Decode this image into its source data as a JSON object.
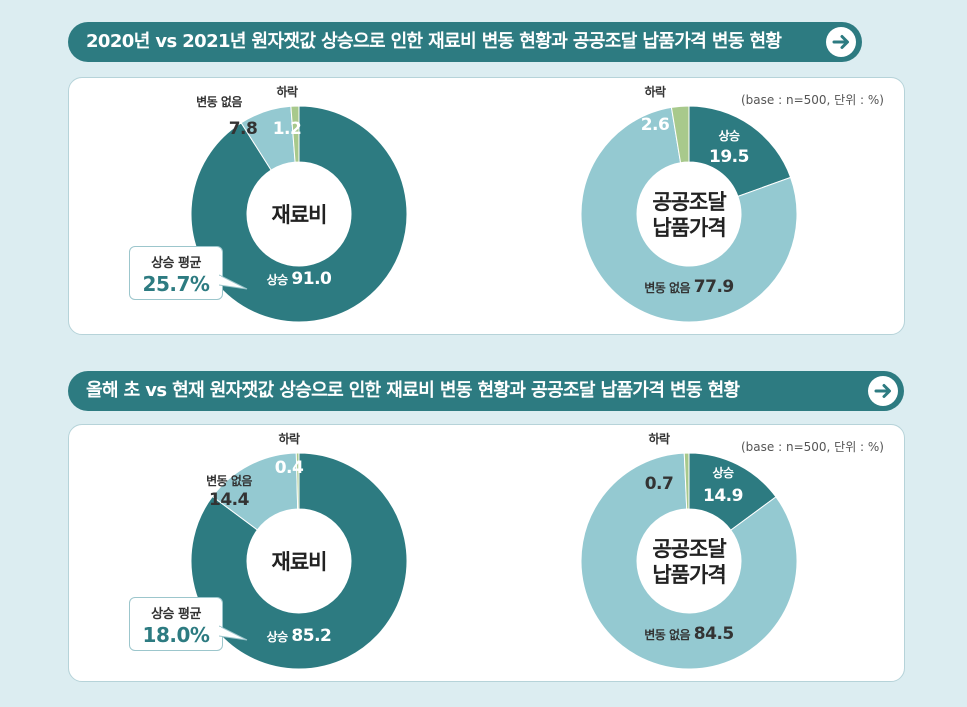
{
  "unit_note": "(base : n=500, 단위 : %)",
  "sections": [
    {
      "title": "2020년 vs 2021년 원자잿값 상승으로 인한 재료비 변동 현황과 공공조달 납품가격 변동 현황",
      "avg_label": "상승 평균",
      "avg_value": "25.7%"
    },
    {
      "title": "올해 초 vs 현재 원자잿값 상승으로 인한 재료비 변동 현황과 공공조달 납품가격 변동 현황",
      "avg_label": "상승 평균",
      "avg_value": "18.0%"
    }
  ],
  "chart_data": [
    {
      "type": "pie",
      "donut": true,
      "center_label": [
        "재료비"
      ],
      "categories": [
        "상승",
        "변동 없음",
        "하락"
      ],
      "values": [
        91.0,
        7.8,
        1.2
      ],
      "colors": [
        "#2d7b81",
        "#94c9d1",
        "#a8c98c"
      ]
    },
    {
      "type": "pie",
      "donut": true,
      "center_label": [
        "공공조달",
        "납품가격"
      ],
      "categories": [
        "상승",
        "변동 없음",
        "하락"
      ],
      "values": [
        19.5,
        77.9,
        2.6
      ],
      "colors": [
        "#2d7b81",
        "#94c9d1",
        "#a8c98c"
      ]
    },
    {
      "type": "pie",
      "donut": true,
      "center_label": [
        "재료비"
      ],
      "categories": [
        "상승",
        "변동 없음",
        "하락"
      ],
      "values": [
        85.2,
        14.4,
        0.4
      ],
      "colors": [
        "#2d7b81",
        "#94c9d1",
        "#a8c98c"
      ]
    },
    {
      "type": "pie",
      "donut": true,
      "center_label": [
        "공공조달",
        "납품가격"
      ],
      "categories": [
        "상승",
        "변동 없음",
        "하락"
      ],
      "values": [
        14.9,
        84.5,
        0.7
      ],
      "colors": [
        "#2d7b81",
        "#94c9d1",
        "#a8c98c"
      ]
    }
  ]
}
